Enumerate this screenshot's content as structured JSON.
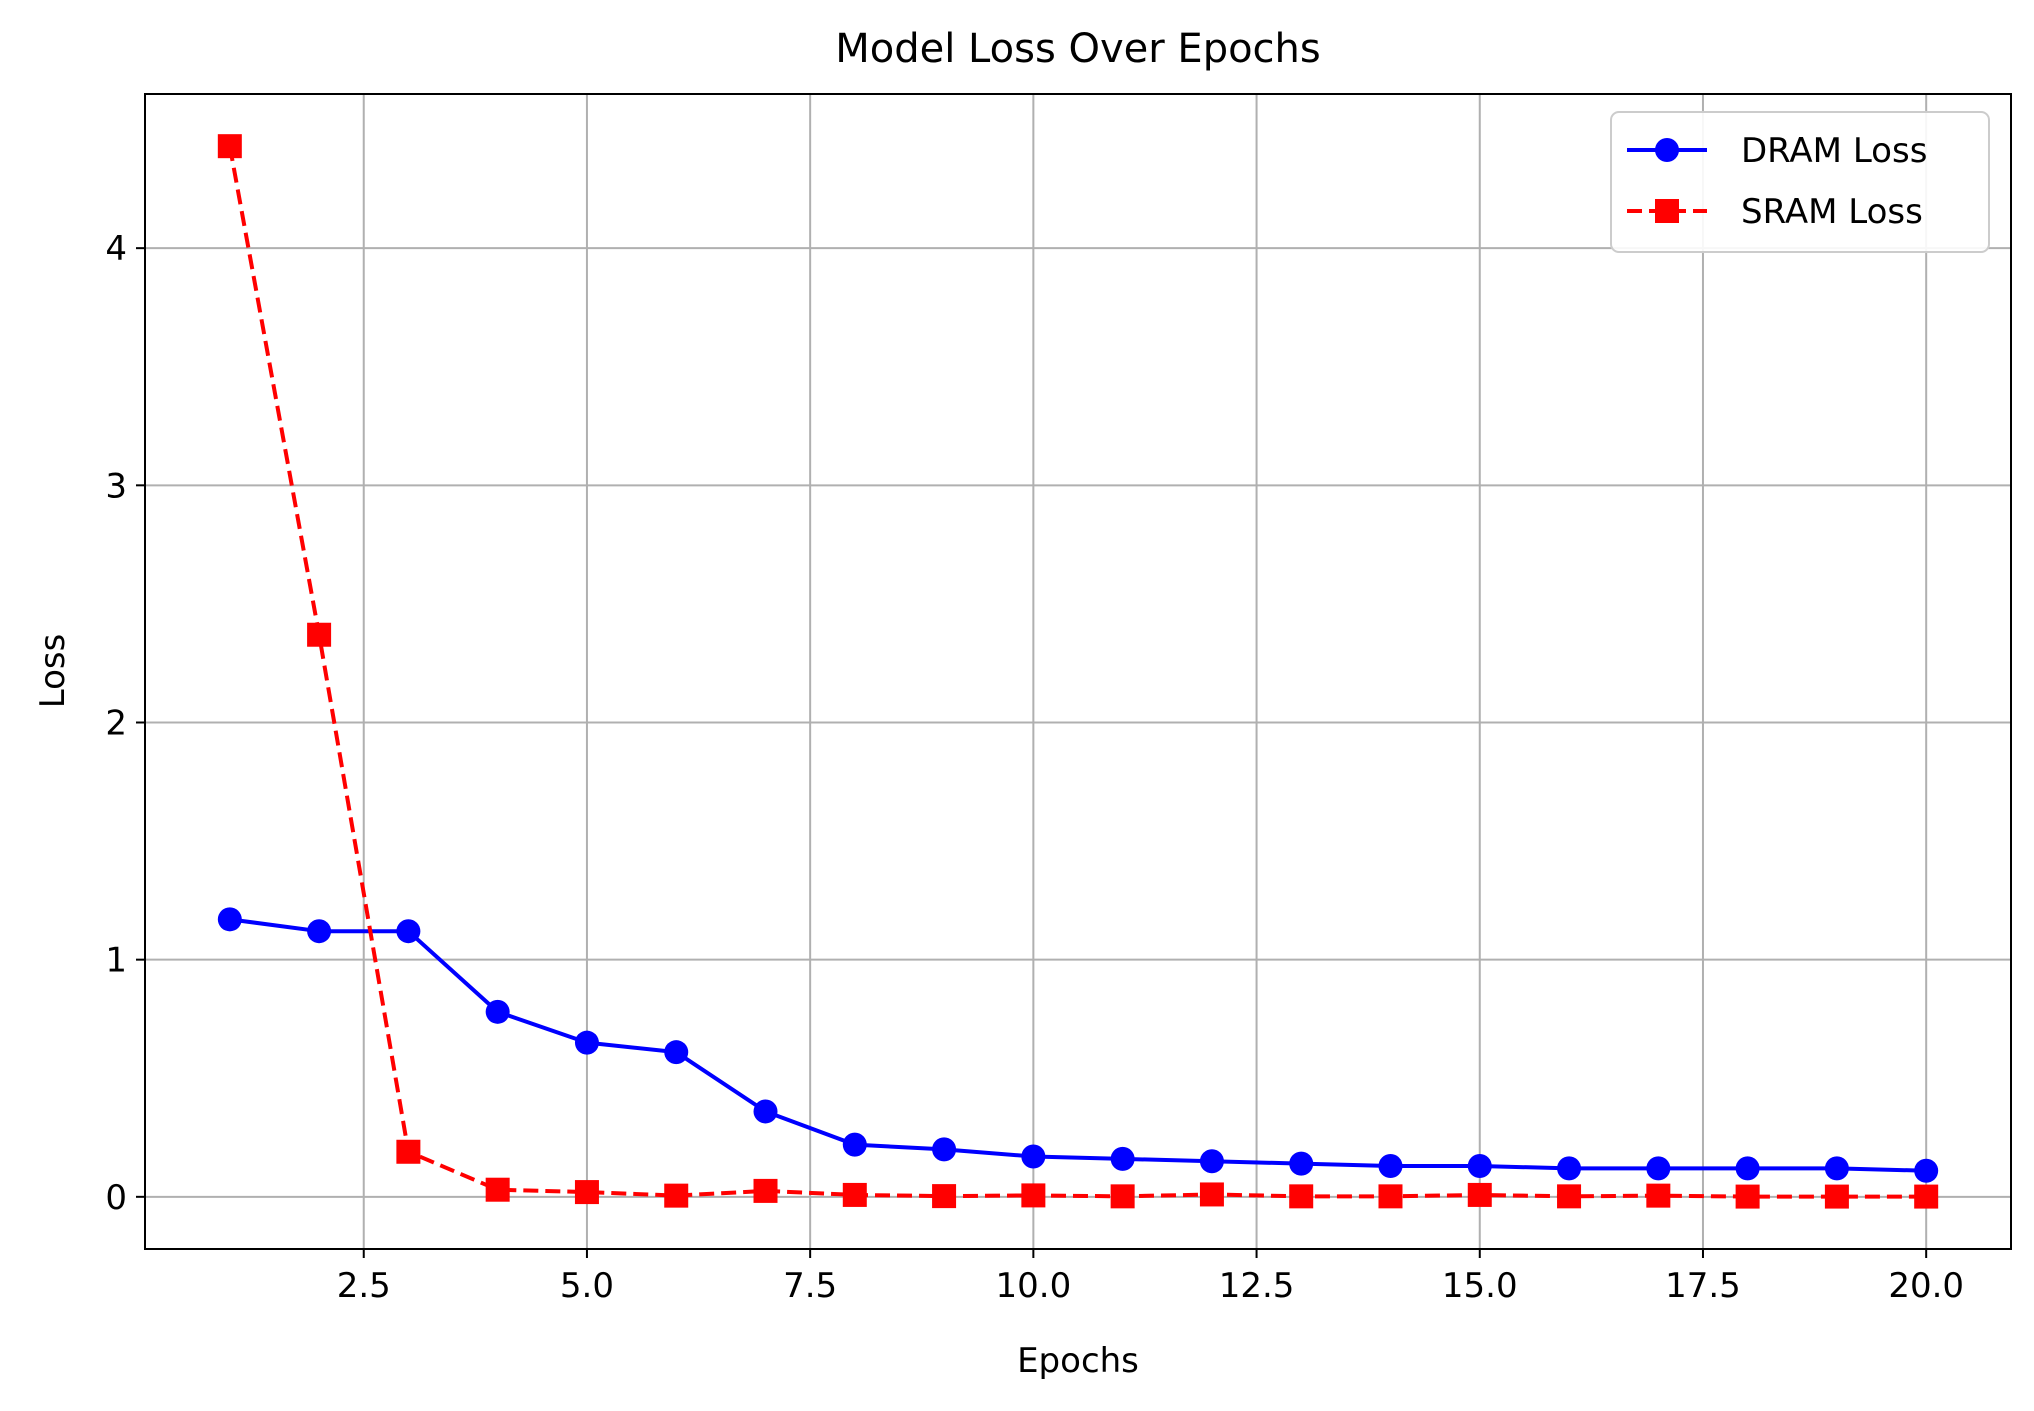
{
  "chart_data": {
    "type": "line",
    "title": "Model Loss Over Epochs",
    "xlabel": "Epochs",
    "ylabel": "Loss",
    "xlim": [
      0.05,
      20.95
    ],
    "ylim": [
      -0.22,
      4.65
    ],
    "grid": true,
    "legend_position": "top-right",
    "x_ticks": [
      2.5,
      5.0,
      7.5,
      10.0,
      12.5,
      15.0,
      17.5,
      20.0
    ],
    "x_tick_labels": [
      "2.5",
      "5.0",
      "7.5",
      "10.0",
      "12.5",
      "15.0",
      "17.5",
      "20.0"
    ],
    "y_ticks": [
      0,
      1,
      2,
      3,
      4
    ],
    "y_tick_labels": [
      "0",
      "1",
      "2",
      "3",
      "4"
    ],
    "x": [
      1,
      2,
      3,
      4,
      5,
      6,
      7,
      8,
      9,
      10,
      11,
      12,
      13,
      14,
      15,
      16,
      17,
      18,
      19,
      20
    ],
    "series": [
      {
        "name": "DRAM Loss",
        "color": "#0000ff",
        "marker": "circle",
        "line_style": "solid",
        "values": [
          1.17,
          1.12,
          1.12,
          0.78,
          0.65,
          0.61,
          0.36,
          0.22,
          0.2,
          0.17,
          0.16,
          0.15,
          0.14,
          0.13,
          0.13,
          0.12,
          0.12,
          0.12,
          0.12,
          0.11
        ]
      },
      {
        "name": "SRAM Loss",
        "color": "#ff0000",
        "marker": "square",
        "line_style": "dashed",
        "values": [
          4.43,
          2.37,
          0.19,
          0.03,
          0.02,
          0.005,
          0.025,
          0.008,
          0.003,
          0.006,
          0.002,
          0.01,
          0.002,
          0.002,
          0.008,
          0.002,
          0.005,
          0.001,
          0.001,
          0.001
        ]
      }
    ]
  }
}
